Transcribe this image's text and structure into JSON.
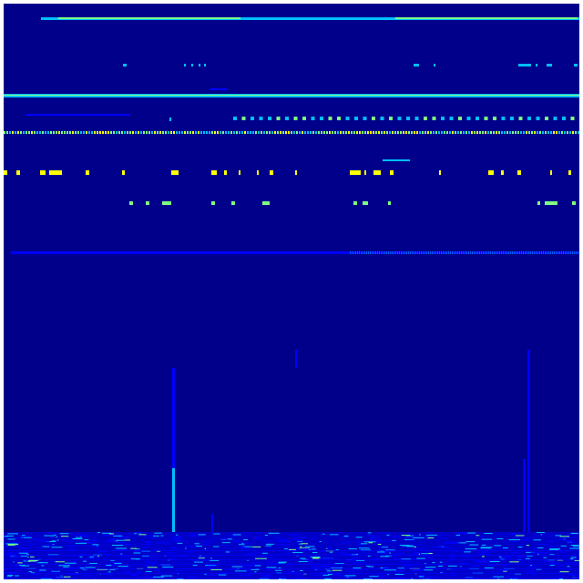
{
  "image": {
    "kind": "spectrogram",
    "colormap": "jet",
    "colors": {
      "background": "#00008b",
      "low": "#0000ff",
      "mid": "#00bfff",
      "high": "#7fff7f",
      "peak": "#ffff00",
      "border": "#ffffff"
    }
  }
}
